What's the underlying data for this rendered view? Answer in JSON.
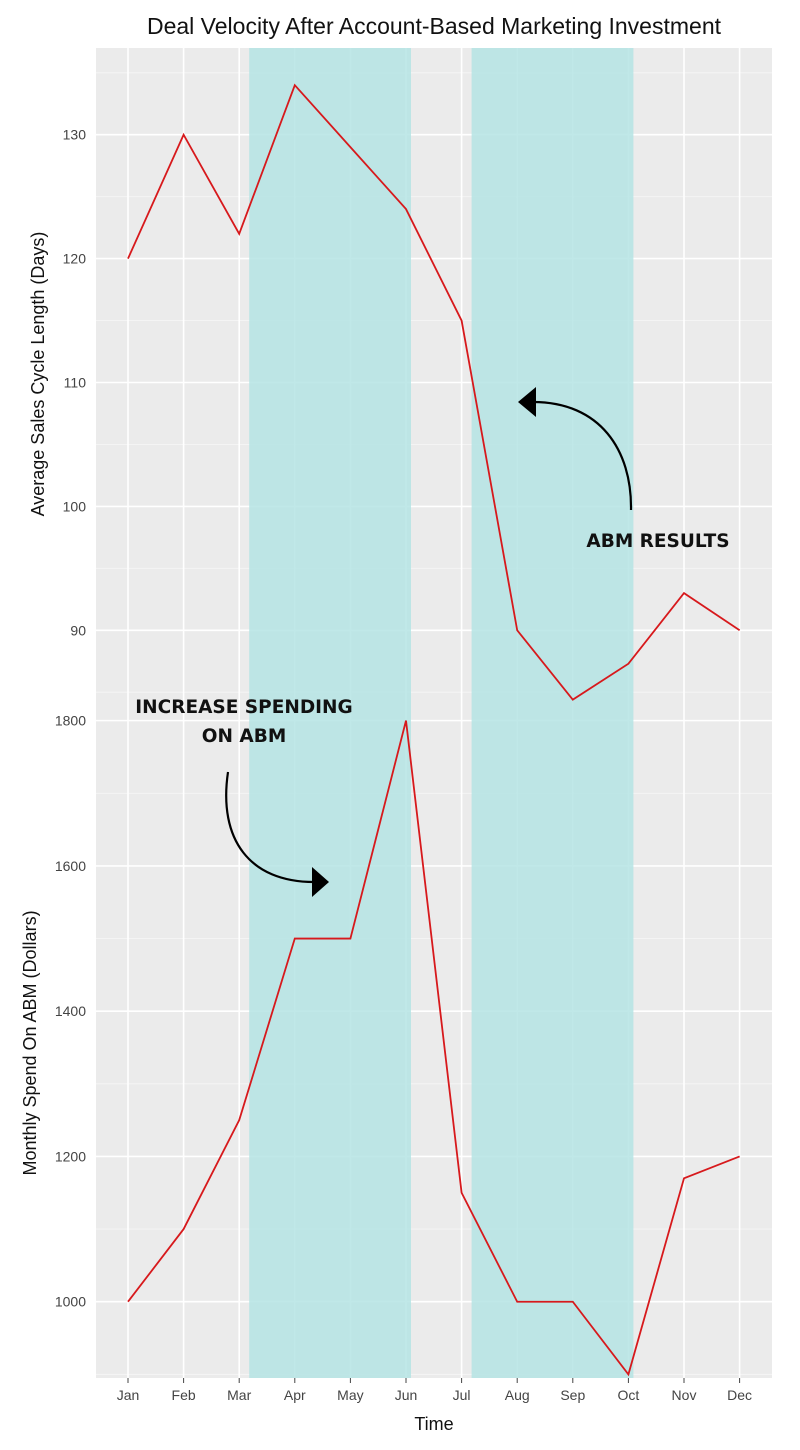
{
  "chart_data": {
    "type": "line",
    "title": "Deal Velocity After Account-Based Marketing Investment",
    "xlabel": "Time",
    "categories": [
      "Jan",
      "Feb",
      "Mar",
      "Apr",
      "May",
      "Jun",
      "Jul",
      "Aug",
      "Sep",
      "Oct",
      "Nov",
      "Dec"
    ],
    "shaded_ranges": [
      [
        "Mar",
        "Jun"
      ],
      [
        "Jul",
        "Oct"
      ]
    ],
    "line_color": "#d7191c",
    "shade_color": "#b2e3e3",
    "panel_bg": "#ebebeb",
    "grid": true,
    "panels": [
      {
        "ylabel": "Average Sales Cycle Length (Days)",
        "ylim": [
          83,
          137
        ],
        "yticks": [
          "90",
          "100",
          "110",
          "120",
          "130"
        ],
        "values": [
          120,
          130,
          122,
          134,
          129,
          124,
          115,
          90,
          84.4,
          87.3,
          93,
          90
        ]
      },
      {
        "ylabel": "Monthly Spend On ABM (Dollars)",
        "ylim": [
          895,
          1805
        ],
        "yticks": [
          "1000",
          "1200",
          "1400",
          "1600",
          "1800"
        ],
        "values": [
          1000,
          1100,
          1250,
          1500,
          1500,
          1800,
          1150,
          1000,
          1000,
          900,
          1170,
          1200
        ]
      }
    ],
    "annotations": [
      {
        "lines": [
          "ABM RESULTS"
        ]
      },
      {
        "lines": [
          "INCREASE SPENDING",
          "ON ABM"
        ]
      }
    ]
  }
}
